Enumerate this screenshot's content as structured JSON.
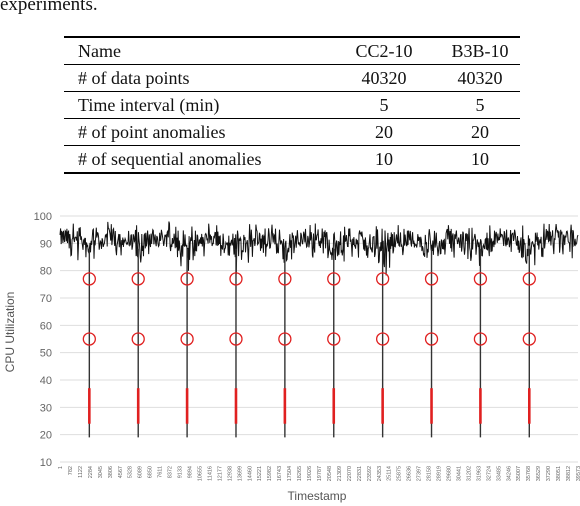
{
  "caption": "experiments.",
  "table": {
    "headers": [
      "Name",
      "CC2-10",
      "B3B-10"
    ],
    "rows": [
      [
        "# of data points",
        "40320",
        "40320"
      ],
      [
        "Time interval (min)",
        "5",
        "5"
      ],
      [
        "# of point anomalies",
        "20",
        "20"
      ],
      [
        "# of sequential anomalies",
        "10",
        "10"
      ]
    ]
  },
  "chart_data": {
    "type": "line",
    "xlabel": "Timestamp",
    "ylabel": "CPU Utilization",
    "ylim": [
      10,
      100
    ],
    "yticks": [
      10,
      20,
      30,
      40,
      50,
      60,
      70,
      80,
      90,
      100
    ],
    "xticks": [
      "1",
      "782",
      "1122",
      "2284",
      "3045",
      "3806",
      "4567",
      "5328",
      "6089",
      "6850",
      "7611",
      "8372",
      "9133",
      "9894",
      "10655",
      "11416",
      "12177",
      "12938",
      "13699",
      "14460",
      "15221",
      "15982",
      "16743",
      "17504",
      "18265",
      "19026",
      "19787",
      "20548",
      "21309",
      "22070",
      "22831",
      "23592",
      "24353",
      "25114",
      "25875",
      "26636",
      "27397",
      "28158",
      "28919",
      "29680",
      "30441",
      "31202",
      "31963",
      "32724",
      "33485",
      "34246",
      "35007",
      "35768",
      "36529",
      "37290",
      "38051",
      "38812",
      "39573"
    ],
    "grid": "horizontal",
    "series": [
      {
        "color": "#111111",
        "baseline": 92,
        "noise_low": 84,
        "noise_high": 98
      }
    ],
    "anomaly_drops": [
      {
        "x": 2284,
        "min": 19
      },
      {
        "x": 6089,
        "min": 19
      },
      {
        "x": 9894,
        "min": 19
      },
      {
        "x": 13699,
        "min": 19
      },
      {
        "x": 17504,
        "min": 19
      },
      {
        "x": 21309,
        "min": 19
      },
      {
        "x": 25114,
        "min": 19
      },
      {
        "x": 28919,
        "min": 19
      },
      {
        "x": 32724,
        "min": 19
      },
      {
        "x": 36529,
        "min": 19
      }
    ],
    "sequential_anomalies": {
      "color": "#e02020",
      "range": [
        24,
        37
      ]
    },
    "point_anomaly_markers": {
      "color": "#e02020",
      "levels": [
        77,
        55
      ]
    }
  }
}
